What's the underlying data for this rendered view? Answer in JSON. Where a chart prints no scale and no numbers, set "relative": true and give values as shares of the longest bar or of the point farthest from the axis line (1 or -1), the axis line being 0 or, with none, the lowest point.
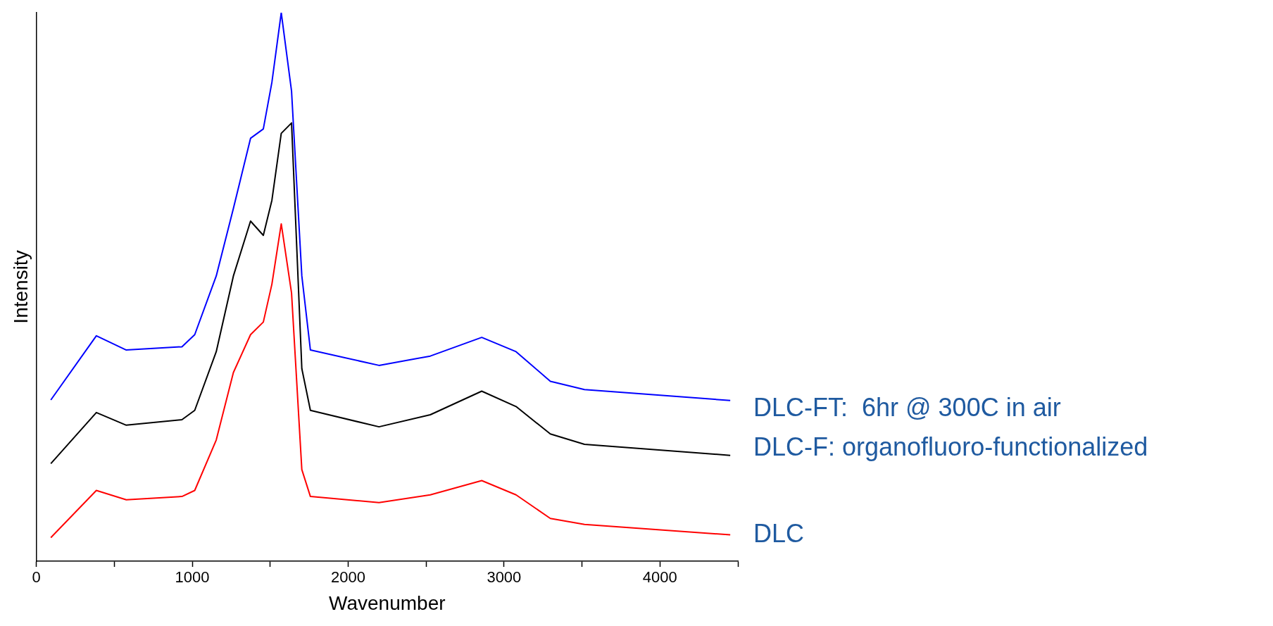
{
  "chart_data": {
    "type": "line",
    "xlabel": "Wavenumber",
    "ylabel": "Intensity",
    "relative": true,
    "xlim": [
      0,
      4500
    ],
    "xticks": [
      0,
      {
        "value": 500,
        "label": null
      },
      1000,
      {
        "value": 1500,
        "label": null
      },
      2000,
      {
        "value": 2500,
        "label": null
      },
      3000,
      {
        "value": 3500,
        "label": null
      },
      4000,
      {
        "value": 4500,
        "label": null
      }
    ],
    "grid": false,
    "legend": false,
    "marker": "none",
    "line_style": "solid",
    "x": [
      93,
      385,
      577,
      934,
      1016,
      1154,
      1264,
      1374,
      1456,
      1511,
      1571,
      1637,
      1703,
      1758,
      2198,
      2527,
      2857,
      3077,
      3297,
      3516,
      4451
    ],
    "series": [
      {
        "name": "DLC-FT:  6hr @ 300C in air",
        "color": "#0000ff",
        "values": [
          0.294,
          0.411,
          0.385,
          0.391,
          0.413,
          0.52,
          0.643,
          0.771,
          0.788,
          0.873,
          1,
          0.857,
          0.52,
          0.385,
          0.357,
          0.374,
          0.408,
          0.382,
          0.328,
          0.313,
          0.293
        ]
      },
      {
        "name": "DLC-F: organofluoro-functionalized",
        "color": "#000000",
        "values": [
          0.178,
          0.271,
          0.248,
          0.258,
          0.275,
          0.382,
          0.52,
          0.62,
          0.594,
          0.658,
          0.78,
          0.799,
          0.351,
          0.275,
          0.245,
          0.267,
          0.31,
          0.282,
          0.232,
          0.213,
          0.193
        ]
      },
      {
        "name": "DLC",
        "color": "#ff0000",
        "values": [
          0.043,
          0.129,
          0.112,
          0.118,
          0.129,
          0.221,
          0.344,
          0.413,
          0.436,
          0.505,
          0.615,
          0.489,
          0.167,
          0.118,
          0.107,
          0.121,
          0.147,
          0.121,
          0.078,
          0.067,
          0.048
        ]
      }
    ]
  }
}
